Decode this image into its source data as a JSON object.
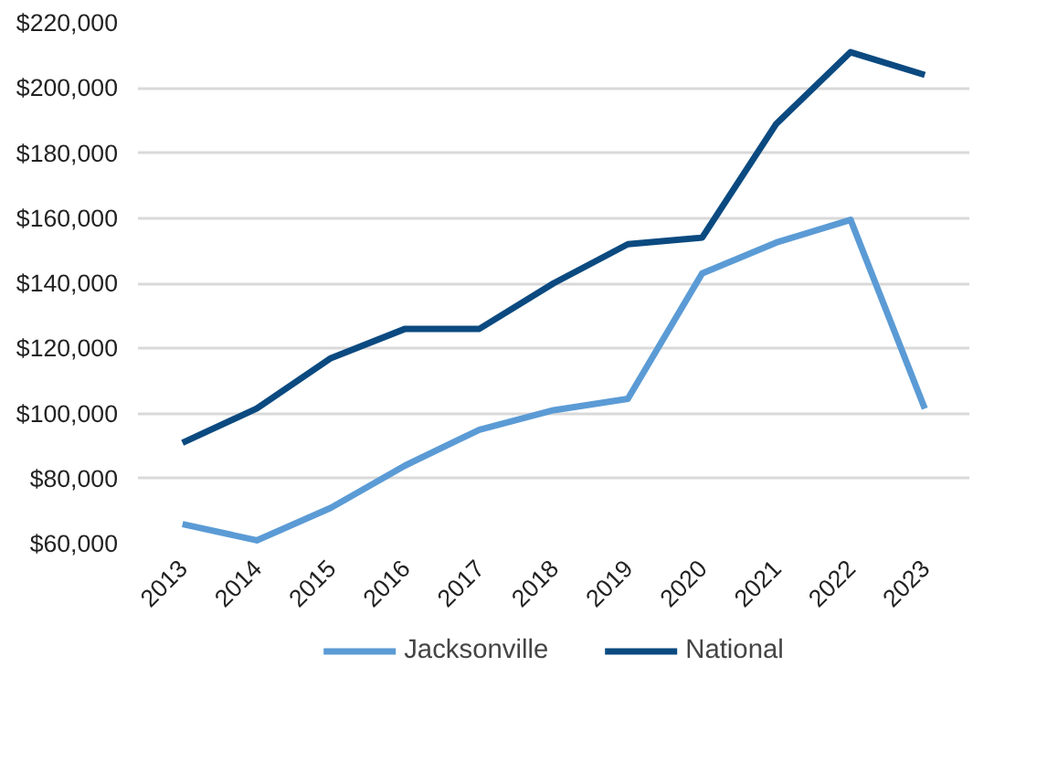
{
  "chart_data": {
    "type": "line",
    "categories": [
      "2013",
      "2014",
      "2015",
      "2016",
      "2017",
      "2018",
      "2019",
      "2020",
      "2021",
      "2022",
      "2023"
    ],
    "series": [
      {
        "name": "Jacksonville",
        "color": "#5b9bd5",
        "values": [
          66000,
          61000,
          71000,
          84000,
          95000,
          101000,
          104500,
          143000,
          152500,
          159500,
          101500
        ]
      },
      {
        "name": "National",
        "color": "#0b4a80",
        "values": [
          91000,
          101500,
          117000,
          126000,
          126000,
          140000,
          152000,
          154000,
          189000,
          211000,
          204000
        ]
      }
    ],
    "ylim": [
      60000,
      220000
    ],
    "yticks": [
      {
        "value": 60000,
        "label": "$60,000"
      },
      {
        "value": 80000,
        "label": "$80,000"
      },
      {
        "value": 100000,
        "label": "$100,000"
      },
      {
        "value": 120000,
        "label": "$120,000"
      },
      {
        "value": 140000,
        "label": "$140,000"
      },
      {
        "value": 160000,
        "label": "$160,000"
      },
      {
        "value": 180000,
        "label": "$180,000"
      },
      {
        "value": 200000,
        "label": "$200,000"
      },
      {
        "value": 220000,
        "label": "$220,000"
      }
    ],
    "grid": "y",
    "legend": "bottom",
    "marker": "none",
    "line_style": "solid"
  }
}
